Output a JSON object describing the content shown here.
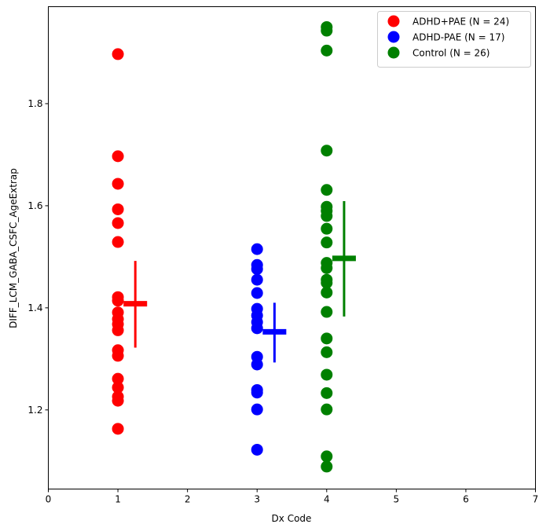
{
  "chart_data": {
    "type": "scatter",
    "title": "",
    "xlabel": "Dx Code",
    "ylabel": "DIFF_LCM_GABA_CSFC_AgeExtrap",
    "xlim": [
      0,
      7
    ],
    "ylim": [
      1.045,
      1.99
    ],
    "x_ticks": [
      "0",
      "1",
      "2",
      "3",
      "4",
      "5",
      "6",
      "7"
    ],
    "y_ticks": [
      "1.2",
      "1.4",
      "1.6",
      "1.8"
    ],
    "legend_position": "top-right",
    "series": [
      {
        "name": "ADHD+PAE (N = 24)",
        "color": "#ff0000",
        "x": 1,
        "values": [
          1.897,
          1.697,
          1.643,
          1.593,
          1.566,
          1.529,
          1.421,
          1.414,
          1.391,
          1.378,
          1.368,
          1.356,
          1.317,
          1.306,
          1.261,
          1.244,
          1.226,
          1.218,
          1.163
        ],
        "mean": 1.408,
        "sd_range": [
          1.322,
          1.492
        ],
        "summary_x": 1.25
      },
      {
        "name": "ADHD-PAE (N = 17)",
        "color": "#0000ff",
        "x": 3,
        "values": [
          1.515,
          1.484,
          1.476,
          1.455,
          1.429,
          1.398,
          1.385,
          1.372,
          1.36,
          1.304,
          1.289,
          1.239,
          1.234,
          1.201,
          1.122
        ],
        "mean": 1.353,
        "sd_range": [
          1.293,
          1.41
        ],
        "summary_x": 3.25
      },
      {
        "name": "Control (N = 26)",
        "color": "#008000",
        "x": 4,
        "values": [
          1.95,
          1.943,
          1.904,
          1.708,
          1.631,
          1.598,
          1.59,
          1.58,
          1.555,
          1.528,
          1.488,
          1.478,
          1.455,
          1.449,
          1.43,
          1.392,
          1.34,
          1.313,
          1.269,
          1.233,
          1.201,
          1.109,
          1.089
        ],
        "mean": 1.497,
        "sd_range": [
          1.383,
          1.609
        ],
        "summary_x": 4.25
      }
    ]
  }
}
